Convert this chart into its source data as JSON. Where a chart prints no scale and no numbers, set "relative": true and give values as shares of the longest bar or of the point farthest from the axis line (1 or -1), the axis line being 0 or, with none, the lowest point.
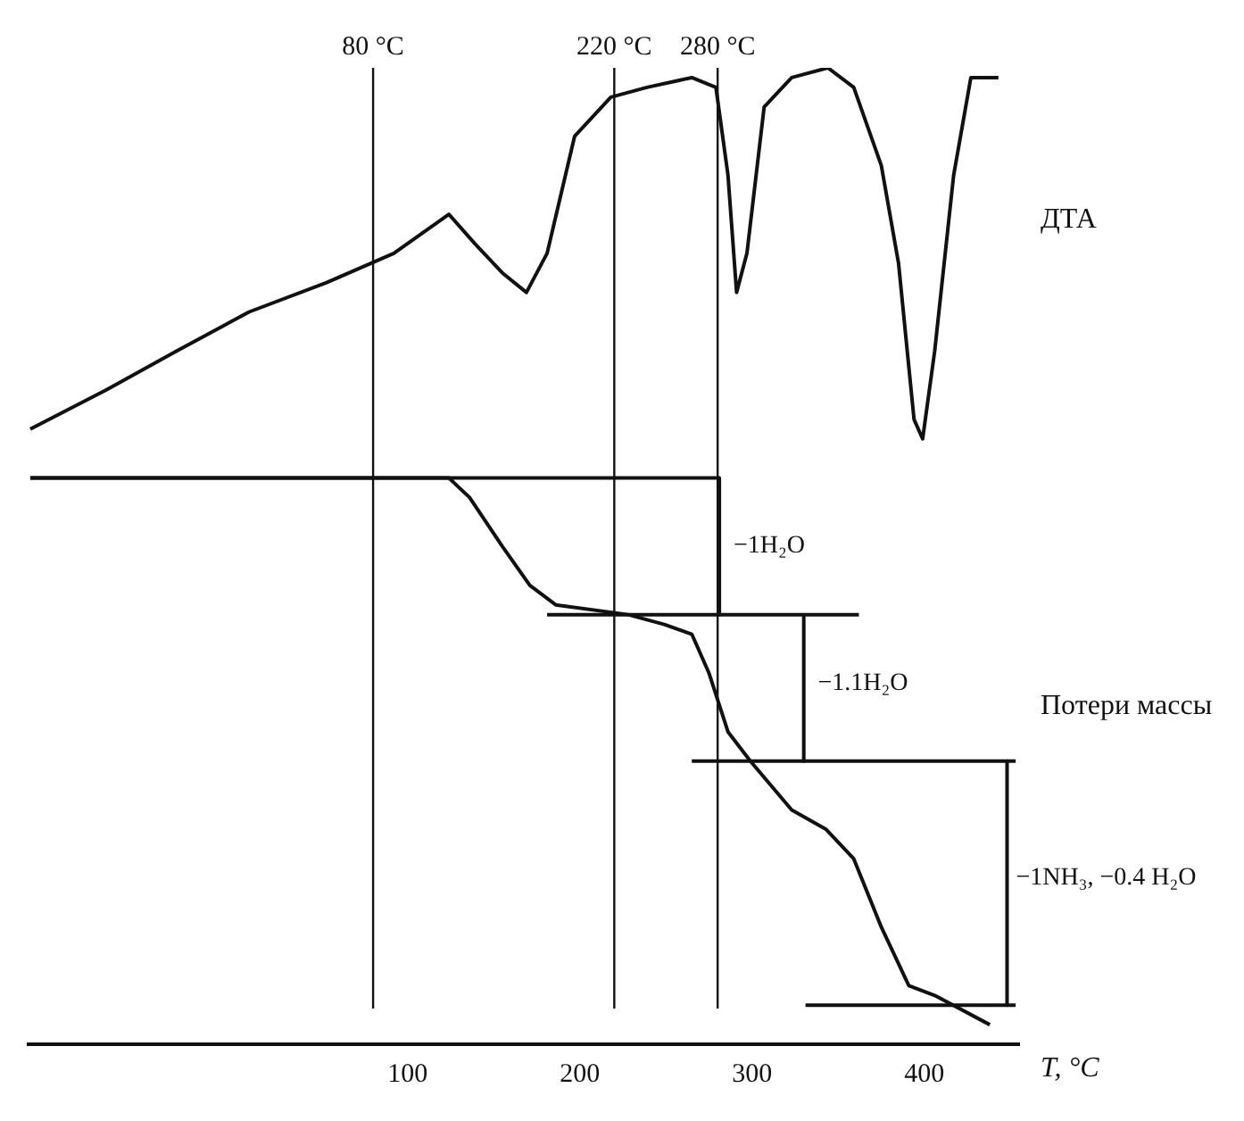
{
  "chart_data": {
    "type": "line",
    "relative": true,
    "xlabel": "T, °C",
    "xlim": [
      -120,
      455
    ],
    "xticks": [
      100,
      200,
      300,
      400
    ],
    "grid": false,
    "legend": false,
    "marker": "none",
    "line_style": "solid",
    "series": [
      {
        "name": "ДТА",
        "color": "#111111",
        "x": [
          -119,
          -75,
          -34,
          8,
          53,
          92,
          124,
          139,
          155,
          169,
          181,
          197,
          218,
          239,
          265,
          279,
          286,
          291,
          297,
          307,
          323,
          344,
          359,
          375,
          385,
          394,
          399,
          406,
          417,
          427,
          443
        ],
        "values": [
          0.63,
          0.67,
          0.71,
          0.75,
          0.78,
          0.81,
          0.85,
          0.82,
          0.79,
          0.77,
          0.81,
          0.93,
          0.97,
          0.98,
          0.99,
          0.98,
          0.89,
          0.77,
          0.81,
          0.96,
          0.99,
          1,
          0.98,
          0.9,
          0.8,
          0.64,
          0.62,
          0.71,
          0.89,
          0.99,
          0.99
        ]
      },
      {
        "name": "Потери массы",
        "color": "#111111",
        "x": [
          -119,
          19,
          124,
          136,
          155,
          171,
          186,
          228,
          249,
          265,
          275,
          286,
          299,
          323,
          343,
          359,
          375,
          391,
          406,
          438
        ],
        "values": [
          0.58,
          0.58,
          0.58,
          0.56,
          0.51,
          0.47,
          0.45,
          0.44,
          0.43,
          0.42,
          0.38,
          0.32,
          0.29,
          0.24,
          0.22,
          0.19,
          0.12,
          0.06,
          0.05,
          0.02
        ]
      },
      {
        "color": "#111111",
        "x": [
          -119,
          281
        ],
        "values": [
          0.58,
          0.58
        ]
      },
      {
        "color": "#111111",
        "x": [
          181,
          362
        ],
        "values": [
          0.44,
          0.44
        ]
      },
      {
        "color": "#111111",
        "x": [
          265,
          453
        ],
        "values": [
          0.29,
          0.29
        ]
      },
      {
        "color": "#111111",
        "x": [
          331,
          453
        ],
        "values": [
          0.04,
          0.04
        ]
      },
      {
        "color": "#111111",
        "x": [
          281,
          281
        ],
        "values": [
          0.58,
          0.44
        ]
      },
      {
        "color": "#111111",
        "x": [
          330,
          330
        ],
        "values": [
          0.44,
          0.29
        ]
      },
      {
        "color": "#111111",
        "x": [
          448,
          448
        ],
        "values": [
          0.29,
          0.04
        ]
      }
    ],
    "ref_lines": [
      {
        "axis": "x",
        "value": 80,
        "label": "80 °C",
        "color": "#111111"
      },
      {
        "axis": "x",
        "value": 220,
        "label": "220 °C",
        "color": "#111111"
      },
      {
        "axis": "x",
        "value": 280,
        "label": "280 °C",
        "color": "#111111"
      }
    ],
    "annotations": [
      {
        "text": "−1H₂O",
        "x": 284,
        "y": 0.51
      },
      {
        "text": "−1.1H₂O",
        "x": 333,
        "y": 0.37
      },
      {
        "text": "−1NH₃, −0.4 H₂O",
        "x": 448,
        "y": 0.17
      }
    ]
  }
}
